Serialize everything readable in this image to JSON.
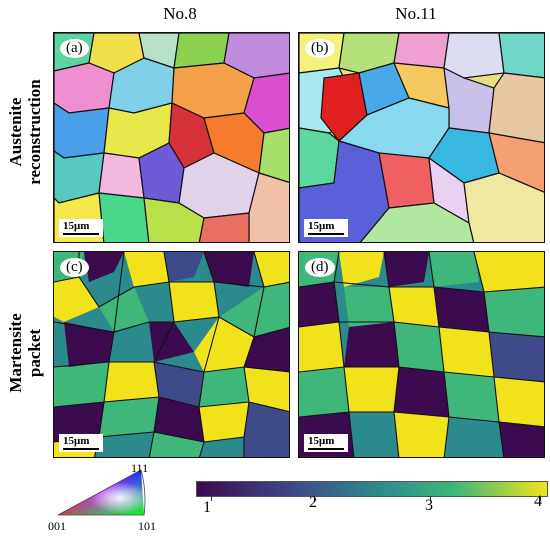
{
  "columns": {
    "left": "No.8",
    "right": "No.11"
  },
  "rows": {
    "top": [
      "Austenite",
      "reconstruction"
    ],
    "bottom": [
      "Martensite",
      "packet"
    ]
  },
  "panels": {
    "a": {
      "label": "(a)",
      "scale": "15μm"
    },
    "b": {
      "label": "(b)",
      "scale": "15μm"
    },
    "c": {
      "label": "(c)",
      "scale": "15μm"
    },
    "d": {
      "label": "(d)",
      "scale": "15μm"
    }
  },
  "ipf_legend": {
    "top": "111",
    "left": "001",
    "right": "101"
  },
  "colorbar": {
    "ticks": [
      "1",
      "2",
      "3",
      "4"
    ],
    "colors": [
      "#3b0a4f",
      "#3e4a8a",
      "#2b8a8c",
      "#3fb77a",
      "#f2e21b"
    ]
  }
}
